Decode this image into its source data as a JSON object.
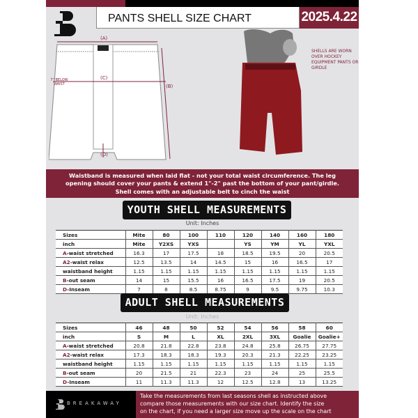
{
  "header": {
    "title": "PANTS SHELL SIZE CHART",
    "date": "2025.4.22"
  },
  "diagram": {
    "label_a": "(A)",
    "label_b": "(B)",
    "label_c": "(C)",
    "label_d": "(D)",
    "waist_note": "7\" BELOW WAIST"
  },
  "photo_note": "SHELLS ARE WORN OVER HOCKEY EQUIPMENT PANTS OR GIRDLE",
  "banner": [
    "Waistband is measured when laid flat - not your total waist circumference. The leg",
    "opening should cover your pants & extend 1\"-2\" past the bottom of your pant/girdle.",
    "Shell comes with an adjustable belt to cinch the waist"
  ],
  "youth": {
    "title": "YOUTH SHELL MEASUREMENTS",
    "unit": "Unit: Inches",
    "rows": [
      {
        "prefix": "",
        "label": "Sizes",
        "values": [
          "Mite",
          "80",
          "100",
          "110",
          "120",
          "140",
          "160",
          "180"
        ]
      },
      {
        "prefix": "",
        "label": "inch",
        "values": [
          "Mite",
          "Y2XS",
          "YXS",
          "",
          "YS",
          "YM",
          "YL",
          "YXL"
        ]
      },
      {
        "prefix": "A",
        "label": "-waist stretched",
        "values": [
          "16.3",
          "17",
          "17.5",
          "18",
          "18.5",
          "19.5",
          "20",
          "20.5"
        ]
      },
      {
        "prefix": "A2",
        "label": "-waist relax",
        "values": [
          "12.5",
          "13.5",
          "14",
          "14.5",
          "15",
          "16",
          "16.5",
          "17"
        ]
      },
      {
        "prefix": "",
        "label": "waistband height",
        "values": [
          "1.15",
          "1.15",
          "1.15",
          "1.15",
          "1.15",
          "1.15",
          "1.15",
          "1.15"
        ]
      },
      {
        "prefix": "B",
        "label": "-out seam",
        "values": [
          "14",
          "15",
          "15.5",
          "16",
          "16.5",
          "17.5",
          "19",
          "20.5"
        ]
      },
      {
        "prefix": "D",
        "label": "-Inseam",
        "values": [
          "7",
          "8",
          "8.5",
          "8.75",
          "9",
          "9.5",
          "9.75",
          "10.3"
        ]
      }
    ]
  },
  "adult": {
    "title": "ADULT SHELL MEASUREMENTS",
    "unit": "Unit: Inches",
    "rows": [
      {
        "prefix": "",
        "label": "Sizes",
        "values": [
          "46",
          "48",
          "50",
          "52",
          "54",
          "56",
          "58",
          "60"
        ]
      },
      {
        "prefix": "",
        "label": "inch",
        "values": [
          "S",
          "M",
          "L",
          "XL",
          "2XL",
          "3XL",
          "Goalie",
          "Goalie+"
        ]
      },
      {
        "prefix": "A",
        "label": "-waist stretched",
        "values": [
          "20.8",
          "21.8",
          "22.8",
          "23.8",
          "24.8",
          "25.8",
          "26.75",
          "27.75"
        ]
      },
      {
        "prefix": "A2",
        "label": "-waist relax",
        "values": [
          "17.3",
          "18.3",
          "18.3",
          "19.3",
          "20.3",
          "21.3",
          "22.25",
          "23.25"
        ]
      },
      {
        "prefix": "",
        "label": "waistband height",
        "values": [
          "1.15",
          "1.15",
          "1.15",
          "1.15",
          "1.15",
          "1.15",
          "1.15",
          "1.15"
        ]
      },
      {
        "prefix": "B",
        "label": "-out seam",
        "values": [
          "20",
          "21.5",
          "21",
          "22.3",
          "23",
          "24",
          "25",
          "25.5"
        ]
      },
      {
        "prefix": "D",
        "label": "-Inseam",
        "values": [
          "11",
          "11.3",
          "11.3",
          "12",
          "12.5",
          "12.8",
          "13",
          "13.25"
        ]
      }
    ]
  },
  "footer": {
    "brand": "BREAKAWAY",
    "text": [
      "Take the measurements from last seasons shell as instructed above",
      "compare those measurements  with our size chart. Identify the size",
      "on the chart, if you need a larger size move up the scale on the chart"
    ]
  },
  "colors": {
    "accent": "#7f2338",
    "panel": "#e3e3e6"
  }
}
